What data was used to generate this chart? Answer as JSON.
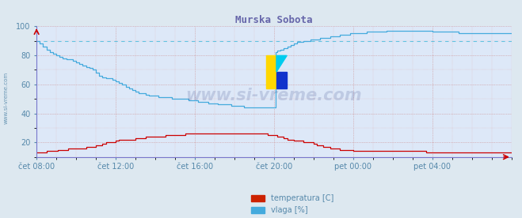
{
  "title": "Murska Sobota",
  "title_color": "#6666aa",
  "bg_color": "#dde8f0",
  "plot_bg_color": "#dde8f8",
  "grid_color_h": "#cc9999",
  "grid_color_v": "#cc9999",
  "xlabel_color": "#5588aa",
  "ylabel_left_text": "www.si-vreme.com",
  "watermark": "www.si-vreme.com",
  "x_tick_labels": [
    "čet 08:00",
    "čet 12:00",
    "čet 16:00",
    "čet 20:00",
    "pet 00:00",
    "pet 04:00"
  ],
  "x_tick_positions": [
    0,
    48,
    96,
    144,
    192,
    240
  ],
  "xlim": [
    0,
    288
  ],
  "ylim": [
    10,
    100
  ],
  "yticks": [
    20,
    40,
    60,
    80,
    100
  ],
  "temp_color": "#cc0000",
  "vlaga_color": "#44aadd",
  "vlaga_dash_color": "#44bbdd",
  "legend_labels": [
    "temperatura [C]",
    "vlaga [%]"
  ],
  "legend_colors": [
    "#cc2200",
    "#44aadd"
  ],
  "temp_data": [
    [
      0,
      13
    ],
    [
      5,
      13
    ],
    [
      6,
      14
    ],
    [
      12,
      14
    ],
    [
      13,
      15
    ],
    [
      18,
      15
    ],
    [
      19,
      16
    ],
    [
      30,
      17
    ],
    [
      36,
      18
    ],
    [
      40,
      19
    ],
    [
      42,
      20
    ],
    [
      48,
      21
    ],
    [
      50,
      22
    ],
    [
      54,
      22
    ],
    [
      60,
      23
    ],
    [
      66,
      24
    ],
    [
      72,
      24
    ],
    [
      78,
      25
    ],
    [
      84,
      25
    ],
    [
      90,
      26
    ],
    [
      96,
      26
    ],
    [
      102,
      26
    ],
    [
      108,
      26
    ],
    [
      114,
      26
    ],
    [
      120,
      26
    ],
    [
      126,
      26
    ],
    [
      132,
      26
    ],
    [
      138,
      26
    ],
    [
      140,
      25
    ],
    [
      142,
      25
    ],
    [
      144,
      25
    ],
    [
      146,
      24
    ],
    [
      148,
      24
    ],
    [
      150,
      23
    ],
    [
      152,
      22
    ],
    [
      154,
      22
    ],
    [
      156,
      21
    ],
    [
      158,
      21
    ],
    [
      160,
      21
    ],
    [
      162,
      20
    ],
    [
      164,
      20
    ],
    [
      166,
      20
    ],
    [
      168,
      19
    ],
    [
      170,
      18
    ],
    [
      172,
      18
    ],
    [
      174,
      17
    ],
    [
      176,
      17
    ],
    [
      178,
      16
    ],
    [
      180,
      16
    ],
    [
      182,
      16
    ],
    [
      184,
      15
    ],
    [
      186,
      15
    ],
    [
      188,
      15
    ],
    [
      190,
      15
    ],
    [
      192,
      14
    ],
    [
      200,
      14
    ],
    [
      208,
      14
    ],
    [
      216,
      14
    ],
    [
      220,
      14
    ],
    [
      224,
      14
    ],
    [
      228,
      14
    ],
    [
      232,
      14
    ],
    [
      236,
      13
    ],
    [
      240,
      13
    ],
    [
      248,
      13
    ],
    [
      256,
      13
    ],
    [
      264,
      13
    ],
    [
      272,
      13
    ],
    [
      280,
      13
    ],
    [
      288,
      13
    ]
  ],
  "vlaga_data": [
    [
      0,
      90
    ],
    [
      1,
      90
    ],
    [
      2,
      88
    ],
    [
      4,
      86
    ],
    [
      6,
      84
    ],
    [
      8,
      82
    ],
    [
      10,
      81
    ],
    [
      12,
      80
    ],
    [
      14,
      79
    ],
    [
      16,
      78
    ],
    [
      18,
      77
    ],
    [
      20,
      77
    ],
    [
      22,
      76
    ],
    [
      24,
      75
    ],
    [
      26,
      74
    ],
    [
      28,
      73
    ],
    [
      30,
      72
    ],
    [
      32,
      71
    ],
    [
      34,
      70
    ],
    [
      36,
      68
    ],
    [
      38,
      66
    ],
    [
      40,
      65
    ],
    [
      42,
      64
    ],
    [
      44,
      64
    ],
    [
      46,
      63
    ],
    [
      48,
      62
    ],
    [
      50,
      61
    ],
    [
      52,
      60
    ],
    [
      54,
      58
    ],
    [
      56,
      57
    ],
    [
      58,
      56
    ],
    [
      60,
      55
    ],
    [
      62,
      54
    ],
    [
      64,
      54
    ],
    [
      66,
      53
    ],
    [
      68,
      52
    ],
    [
      70,
      52
    ],
    [
      72,
      52
    ],
    [
      74,
      51
    ],
    [
      76,
      51
    ],
    [
      78,
      51
    ],
    [
      80,
      51
    ],
    [
      82,
      50
    ],
    [
      84,
      50
    ],
    [
      86,
      50
    ],
    [
      88,
      50
    ],
    [
      90,
      50
    ],
    [
      92,
      49
    ],
    [
      94,
      49
    ],
    [
      96,
      49
    ],
    [
      98,
      48
    ],
    [
      100,
      48
    ],
    [
      102,
      48
    ],
    [
      104,
      47
    ],
    [
      106,
      47
    ],
    [
      108,
      47
    ],
    [
      110,
      46
    ],
    [
      112,
      46
    ],
    [
      114,
      46
    ],
    [
      116,
      46
    ],
    [
      118,
      45
    ],
    [
      120,
      45
    ],
    [
      122,
      45
    ],
    [
      124,
      45
    ],
    [
      126,
      44
    ],
    [
      128,
      44
    ],
    [
      130,
      44
    ],
    [
      132,
      44
    ],
    [
      134,
      44
    ],
    [
      136,
      44
    ],
    [
      138,
      44
    ],
    [
      140,
      44
    ],
    [
      142,
      44
    ],
    [
      144,
      44
    ],
    [
      145,
      82
    ],
    [
      146,
      83
    ],
    [
      148,
      84
    ],
    [
      150,
      85
    ],
    [
      152,
      86
    ],
    [
      154,
      87
    ],
    [
      156,
      88
    ],
    [
      158,
      89
    ],
    [
      160,
      89
    ],
    [
      162,
      90
    ],
    [
      164,
      90
    ],
    [
      166,
      91
    ],
    [
      168,
      91
    ],
    [
      170,
      91
    ],
    [
      172,
      92
    ],
    [
      174,
      92
    ],
    [
      176,
      92
    ],
    [
      178,
      93
    ],
    [
      180,
      93
    ],
    [
      182,
      93
    ],
    [
      184,
      94
    ],
    [
      186,
      94
    ],
    [
      188,
      94
    ],
    [
      190,
      95
    ],
    [
      192,
      95
    ],
    [
      196,
      95
    ],
    [
      200,
      96
    ],
    [
      204,
      96
    ],
    [
      208,
      96
    ],
    [
      212,
      97
    ],
    [
      216,
      97
    ],
    [
      220,
      97
    ],
    [
      224,
      97
    ],
    [
      228,
      97
    ],
    [
      232,
      97
    ],
    [
      236,
      97
    ],
    [
      240,
      96
    ],
    [
      244,
      96
    ],
    [
      248,
      96
    ],
    [
      252,
      96
    ],
    [
      256,
      95
    ],
    [
      260,
      95
    ],
    [
      264,
      95
    ],
    [
      268,
      95
    ],
    [
      272,
      95
    ],
    [
      276,
      95
    ],
    [
      280,
      95
    ],
    [
      284,
      95
    ],
    [
      288,
      95
    ]
  ]
}
